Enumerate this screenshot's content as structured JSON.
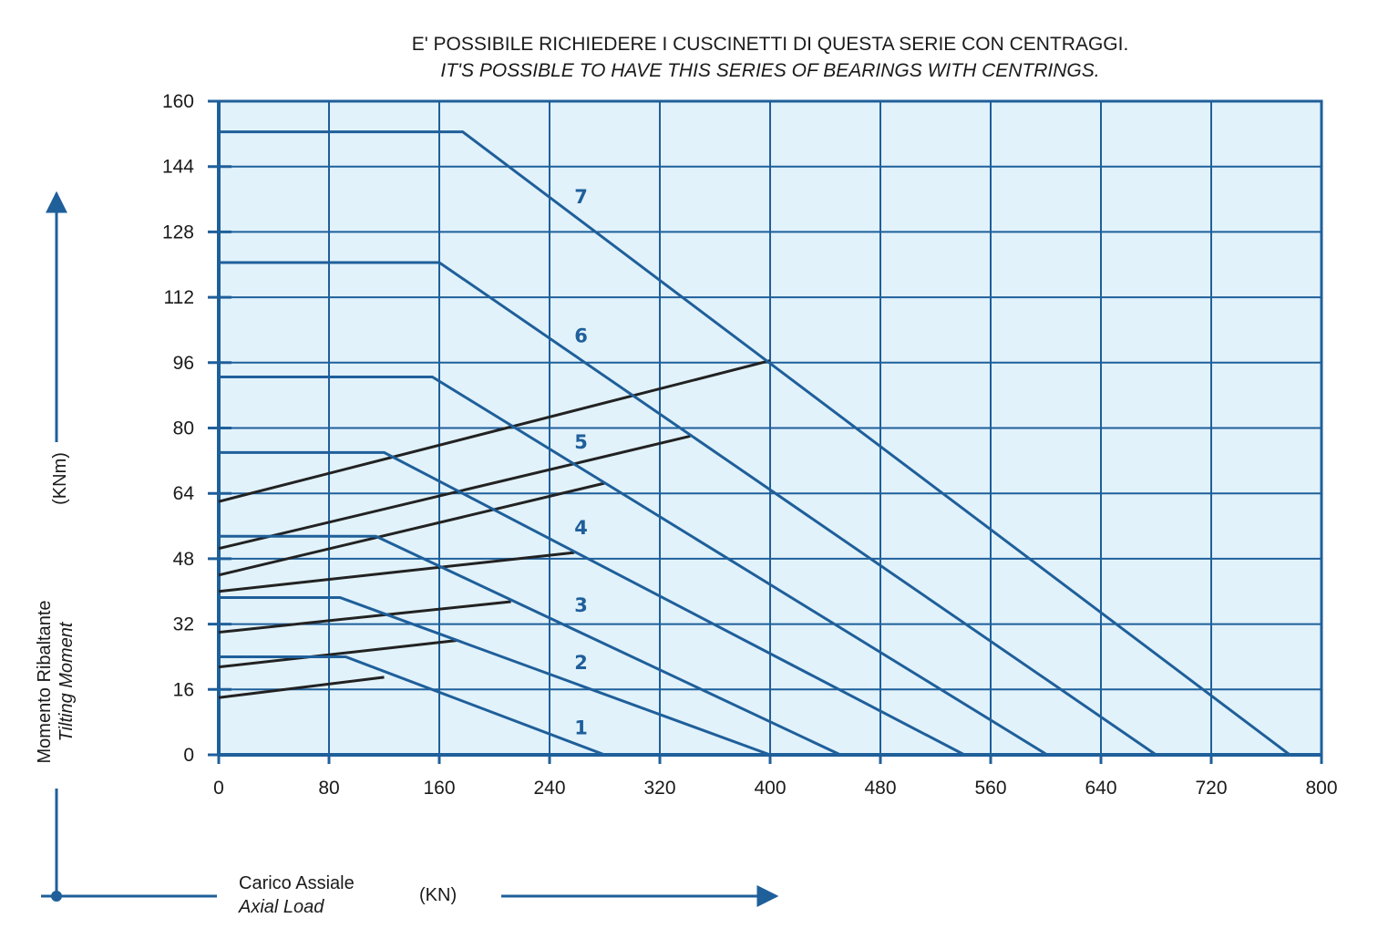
{
  "title": {
    "line1": "E' POSSIBILE RICHIEDERE I CUSCINETTI DI QUESTA SERIE CON CENTRAGGI.",
    "line2": "IT'S POSSIBLE TO HAVE THIS SERIES OF BEARINGS WITH CENTRINGS."
  },
  "y_axis": {
    "label_it": "Momento Ribaltante",
    "label_en": "Tilting Moment",
    "unit": "(KNm)"
  },
  "x_axis": {
    "label_it": "Carico Assiale",
    "label_en": "Axial Load",
    "unit": "(KN)"
  },
  "colors": {
    "grid": "#1f5f9a",
    "plot_background": "#e1f2fb",
    "limit_curve": "#1f5f9a",
    "ref_line": "#222222",
    "curve_label": "#1f5f9a"
  },
  "chart_data": {
    "type": "line",
    "xlim": [
      0,
      800
    ],
    "ylim": [
      0,
      160
    ],
    "x_ticks": [
      0,
      80,
      160,
      240,
      320,
      400,
      480,
      560,
      640,
      720,
      800
    ],
    "y_ticks": [
      0,
      16,
      32,
      48,
      64,
      80,
      96,
      112,
      128,
      144,
      160
    ],
    "grid": true,
    "series": [
      {
        "name": "1",
        "label_pos": [
          258,
          5
        ],
        "points": [
          [
            0,
            24
          ],
          [
            92,
            24
          ],
          [
            280,
            0
          ]
        ]
      },
      {
        "name": "2",
        "label_pos": [
          258,
          21
        ],
        "points": [
          [
            0,
            38.5
          ],
          [
            88,
            38.5
          ],
          [
            400,
            0
          ]
        ]
      },
      {
        "name": "3",
        "label_pos": [
          258,
          35
        ],
        "points": [
          [
            0,
            53.5
          ],
          [
            114,
            53.5
          ],
          [
            451,
            0
          ]
        ]
      },
      {
        "name": "4",
        "label_pos": [
          258,
          54
        ],
        "points": [
          [
            0,
            74
          ],
          [
            120,
            74
          ],
          [
            541,
            0
          ]
        ]
      },
      {
        "name": "5",
        "label_pos": [
          258,
          75
        ],
        "points": [
          [
            0,
            92.5
          ],
          [
            155,
            92.5
          ],
          [
            601,
            0
          ]
        ]
      },
      {
        "name": "6",
        "label_pos": [
          258,
          101
        ],
        "points": [
          [
            0,
            120.5
          ],
          [
            160,
            120.5
          ],
          [
            680,
            0
          ]
        ]
      },
      {
        "name": "7",
        "label_pos": [
          258,
          135
        ],
        "points": [
          [
            0,
            152.5
          ],
          [
            177,
            152.5
          ],
          [
            777,
            0
          ]
        ]
      }
    ],
    "reference_lines": [
      {
        "points": [
          [
            0,
            14
          ],
          [
            120,
            19
          ]
        ]
      },
      {
        "points": [
          [
            0,
            21.5
          ],
          [
            173,
            28
          ]
        ]
      },
      {
        "points": [
          [
            0,
            30
          ],
          [
            212,
            37.5
          ]
        ]
      },
      {
        "points": [
          [
            0,
            40
          ],
          [
            258,
            49.5
          ]
        ]
      },
      {
        "points": [
          [
            0,
            44
          ],
          [
            280,
            66.5
          ]
        ]
      },
      {
        "points": [
          [
            0,
            50.5
          ],
          [
            342,
            78
          ]
        ]
      },
      {
        "points": [
          [
            0,
            62
          ],
          [
            400,
            96.5
          ]
        ]
      }
    ]
  }
}
